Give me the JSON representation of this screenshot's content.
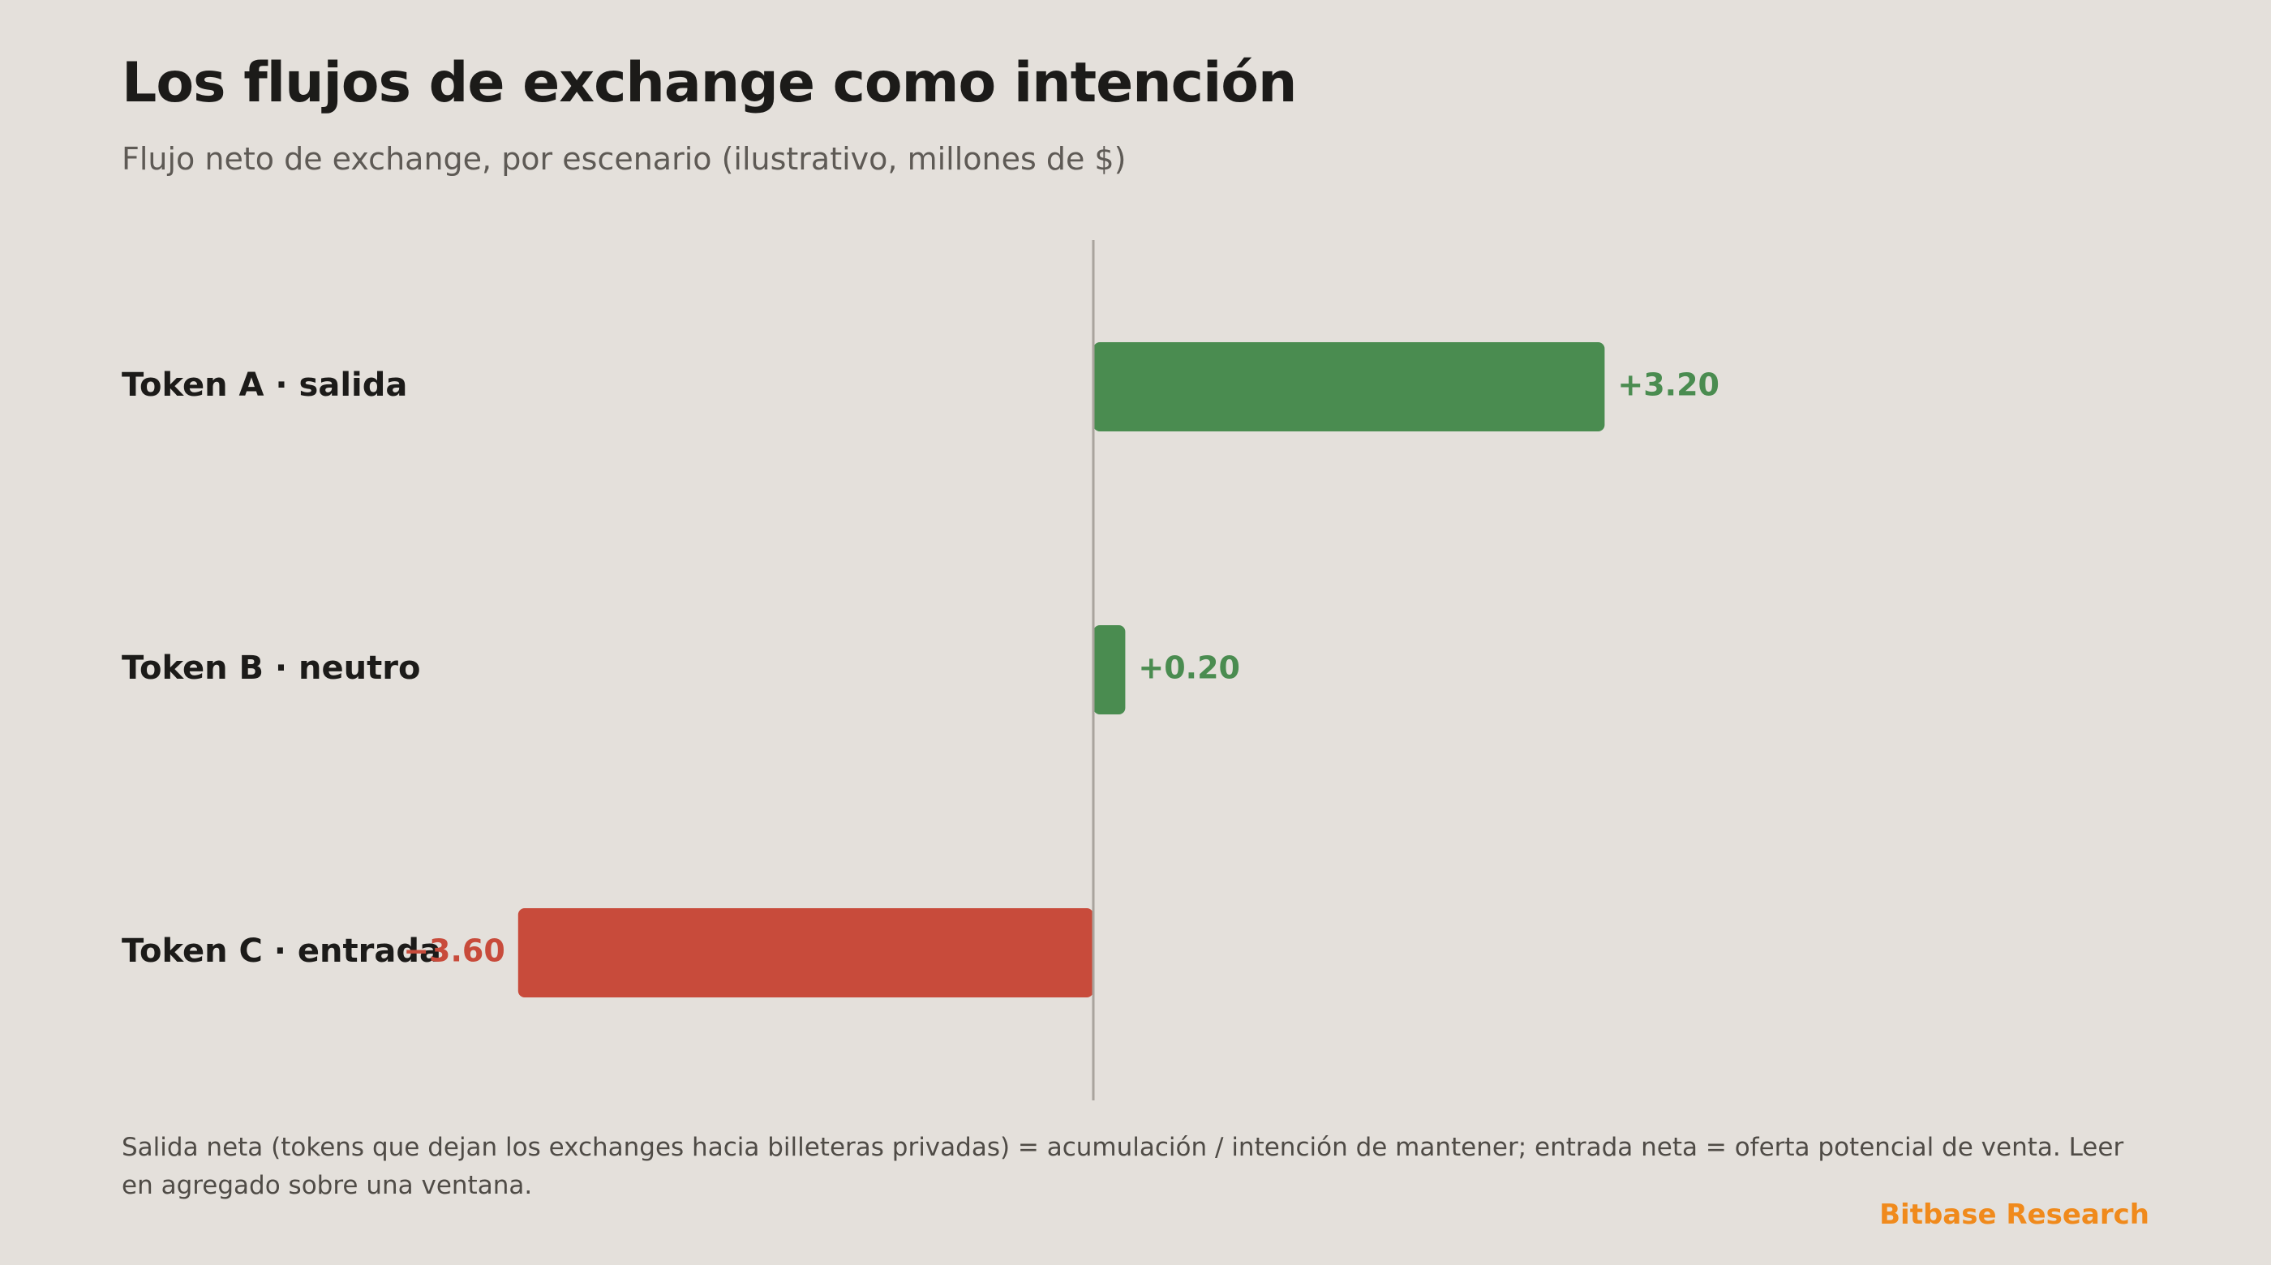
{
  "header": {
    "title": "Los flujos de exchange como intención",
    "subtitle": "Flujo neto de exchange, por escenario (ilustrativo, millones de $)"
  },
  "footer": {
    "note": "Salida neta (tokens que dejan los exchanges hacia billeteras privadas) = acumulación / intención de mantener; entrada neta = oferta potencial de venta. Leer en agregado sobre una ventana.",
    "brand": "Bitbase Research"
  },
  "colors": {
    "positive": "#4a8c50",
    "negative": "#c84b3b",
    "axis": "#a9a49d",
    "brand": "#f08a1c"
  },
  "chart_data": {
    "type": "bar",
    "orientation": "horizontal",
    "title": "Los flujos de exchange como intención",
    "subtitle": "Flujo neto de exchange, por escenario (ilustrativo, millones de $)",
    "categories": [
      "Token A · salida",
      "Token B · neutro",
      "Token C · entrada"
    ],
    "values": [
      3.2,
      0.2,
      -3.6
    ],
    "value_labels": [
      "+3.20",
      "+0.20",
      "−3.60"
    ],
    "xlim": [
      -6.1,
      7.0
    ],
    "zero_line": true,
    "grid": false,
    "legend": "none"
  }
}
